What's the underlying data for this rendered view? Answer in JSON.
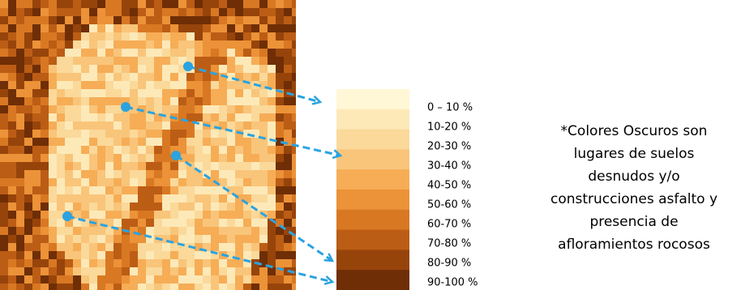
{
  "legend": {
    "items": [
      {
        "label": "0 – 10 %",
        "color": "#fff7d6"
      },
      {
        "label": "10-20 %",
        "color": "#fde9b8"
      },
      {
        "label": "20-30 %",
        "color": "#fbd99a"
      },
      {
        "label": "30-40 %",
        "color": "#f9c57a"
      },
      {
        "label": "40-50 %",
        "color": "#f6ad56"
      },
      {
        "label": "50-60 %",
        "color": "#ec9238"
      },
      {
        "label": "60-70 %",
        "color": "#d97823"
      },
      {
        "label": "70-80 %",
        "color": "#bc5d15"
      },
      {
        "label": "80-90 %",
        "color": "#97440b"
      },
      {
        "label": "90-100 %",
        "color": "#6f2e05"
      }
    ]
  },
  "note": {
    "lines": [
      "*Colores Oscuros son",
      "lugares de suelos",
      "desnudos y/o",
      "construcciones asfalto y",
      "presencia de",
      "afloramientos rocosos"
    ]
  }
}
